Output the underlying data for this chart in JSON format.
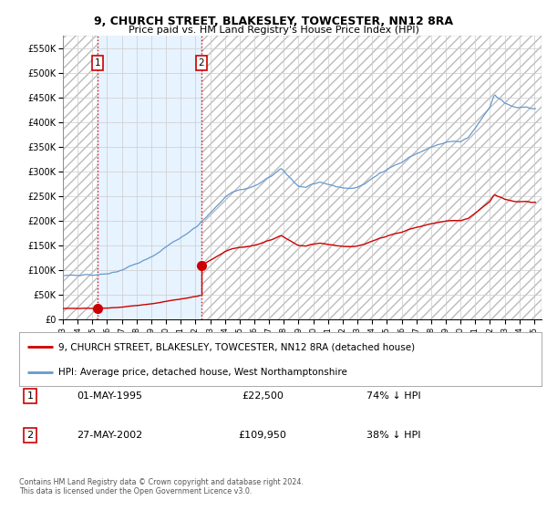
{
  "title_line1": "9, CHURCH STREET, BLAKESLEY, TOWCESTER, NN12 8RA",
  "title_line2": "Price paid vs. HM Land Registry's House Price Index (HPI)",
  "sale1_date": "01-MAY-1995",
  "sale1_price": 22500,
  "sale1_x": 1995.37,
  "sale2_date": "27-MAY-2002",
  "sale2_price": 109950,
  "sale2_x": 2002.4,
  "ylim": [
    0,
    575000
  ],
  "xlim": [
    1993.0,
    2025.5
  ],
  "yticks": [
    0,
    50000,
    100000,
    150000,
    200000,
    250000,
    300000,
    350000,
    400000,
    450000,
    500000,
    550000
  ],
  "ytick_labels": [
    "£0",
    "£50K",
    "£100K",
    "£150K",
    "£200K",
    "£250K",
    "£300K",
    "£350K",
    "£400K",
    "£450K",
    "£500K",
    "£550K"
  ],
  "xticks": [
    1993,
    1994,
    1995,
    1996,
    1997,
    1998,
    1999,
    2000,
    2001,
    2002,
    2003,
    2004,
    2005,
    2006,
    2007,
    2008,
    2009,
    2010,
    2011,
    2012,
    2013,
    2014,
    2015,
    2016,
    2017,
    2018,
    2019,
    2020,
    2021,
    2022,
    2023,
    2024,
    2025
  ],
  "hpi_color": "#6699cc",
  "price_color": "#cc0000",
  "legend_label1": "9, CHURCH STREET, BLAKESLEY, TOWCESTER, NN12 8RA (detached house)",
  "legend_label2": "HPI: Average price, detached house, West Northamptonshire",
  "table_row1": [
    "1",
    "01-MAY-1995",
    "£22,500",
    "74% ↓ HPI"
  ],
  "table_row2": [
    "2",
    "27-MAY-2002",
    "£109,950",
    "38% ↓ HPI"
  ],
  "footer_text": "Contains HM Land Registry data © Crown copyright and database right 2024.\nThis data is licensed under the Open Government Licence v3.0.",
  "bg_color": "#ffffff",
  "grid_color": "#cccccc",
  "inner_bg_color": "#ddeeff",
  "hatch_color": "#bbbbbb"
}
